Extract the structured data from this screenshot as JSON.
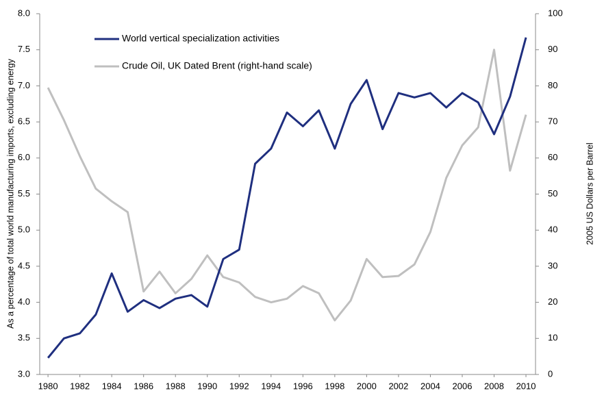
{
  "chart_data": {
    "type": "line",
    "ylabel": "As a percentage of total world manufacturing imports, excluding energy",
    "y2label": "2005 US Dollars per Barrel",
    "x": [
      1980,
      1981,
      1982,
      1983,
      1984,
      1985,
      1986,
      1987,
      1988,
      1989,
      1990,
      1991,
      1992,
      1993,
      1994,
      1995,
      1996,
      1997,
      1998,
      1999,
      2000,
      2001,
      2002,
      2003,
      2004,
      2005,
      2006,
      2007,
      2008,
      2009,
      2010
    ],
    "xlim": [
      1979.48,
      2010.6
    ],
    "xticks": [
      1980,
      1982,
      1984,
      1986,
      1988,
      1990,
      1992,
      1994,
      1996,
      1998,
      2000,
      2002,
      2004,
      2006,
      2008,
      2010
    ],
    "ylim": [
      3,
      8
    ],
    "yticks": [
      {
        "value": 3,
        "label": "3.0"
      },
      {
        "value": 3.5,
        "label": "3.5"
      },
      {
        "value": 4,
        "label": "4.0"
      },
      {
        "value": 4.5,
        "label": "4.5"
      },
      {
        "value": 5,
        "label": "5.0"
      },
      {
        "value": 5.5,
        "label": "5.5"
      },
      {
        "value": 6,
        "label": "6.0"
      },
      {
        "value": 6.5,
        "label": "6.5"
      },
      {
        "value": 7,
        "label": "7.0"
      },
      {
        "value": 7.5,
        "label": "7.5"
      },
      {
        "value": 8,
        "label": "8.0"
      }
    ],
    "y2lim": [
      0,
      100
    ],
    "y2ticks": [
      0,
      10,
      20,
      30,
      40,
      50,
      60,
      70,
      80,
      90,
      100
    ],
    "legend": "upper left",
    "series": [
      {
        "name": "World vertical specialization activities",
        "color": "#1f2f7f",
        "axis": "y",
        "values": [
          3.23,
          3.5,
          3.57,
          3.83,
          4.4,
          3.87,
          4.03,
          3.92,
          4.05,
          4.1,
          3.94,
          4.6,
          4.73,
          5.92,
          6.13,
          6.63,
          6.44,
          6.66,
          6.13,
          6.75,
          7.08,
          6.4,
          6.9,
          6.84,
          6.9,
          6.7,
          6.9,
          6.77,
          6.33,
          6.85,
          7.67
        ]
      },
      {
        "name": "Crude Oil, UK Dated Brent (right-hand scale)",
        "color": "#bfbfbf",
        "axis": "y2",
        "values": [
          79.5,
          70.5,
          60.5,
          51.5,
          48,
          45,
          23,
          28.5,
          22.5,
          26.5,
          33,
          27,
          25.5,
          21.5,
          20,
          21,
          24.5,
          22.5,
          15,
          20.5,
          32,
          27,
          27.3,
          30.5,
          39.5,
          54.5,
          63.5,
          68.5,
          90,
          56.5,
          72
        ]
      }
    ]
  }
}
